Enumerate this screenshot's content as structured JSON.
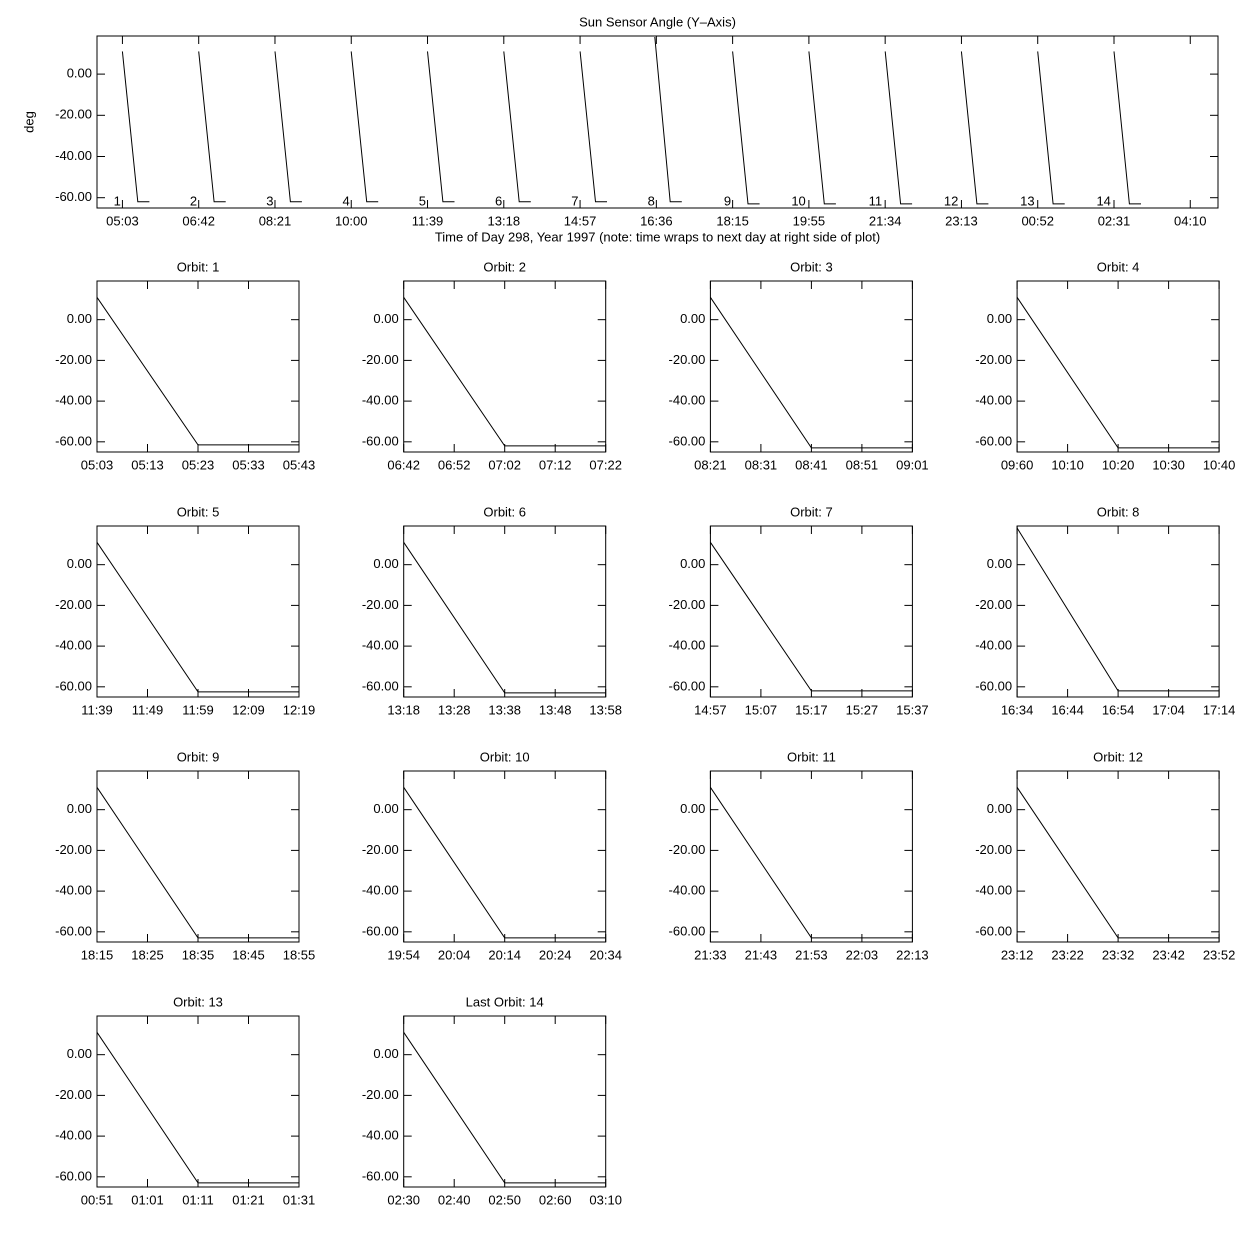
{
  "chart_data": [
    {
      "type": "line",
      "title": "Sun Sensor Angle (Y–Axis)",
      "xlabel": "Time of Day 298, Year 1997 (note: time wraps to next day at right side of plot)",
      "ylabel": "deg",
      "xlim": [
        270,
        1725
      ],
      "ylim": [
        -65,
        18.5
      ],
      "xticks": [
        {
          "value": 303,
          "label": "05:03"
        },
        {
          "value": 402,
          "label": "06:42"
        },
        {
          "value": 501,
          "label": "08:21"
        },
        {
          "value": 600,
          "label": "10:00"
        },
        {
          "value": 699,
          "label": "11:39"
        },
        {
          "value": 798,
          "label": "13:18"
        },
        {
          "value": 897,
          "label": "14:57"
        },
        {
          "value": 996,
          "label": "16:36"
        },
        {
          "value": 1095,
          "label": "18:15"
        },
        {
          "value": 1194,
          "label": "19:55"
        },
        {
          "value": 1293,
          "label": "21:34"
        },
        {
          "value": 1392,
          "label": "23:13"
        },
        {
          "value": 1491,
          "label": "00:52"
        },
        {
          "value": 1590,
          "label": "02:31"
        },
        {
          "value": 1689,
          "label": "04:10"
        }
      ],
      "yticks": [
        {
          "value": 0,
          "label": "0.00"
        },
        {
          "value": -20,
          "label": "-20.00"
        },
        {
          "value": -40,
          "label": "-40.00"
        },
        {
          "value": -60,
          "label": "-60.00"
        }
      ],
      "x": [
        303,
        323,
        338,
        null,
        402,
        422,
        437,
        null,
        501,
        521,
        536,
        null,
        600,
        620,
        635,
        null,
        699,
        719,
        734,
        null,
        798,
        818,
        833,
        null,
        897,
        917,
        932,
        null,
        994,
        1014,
        1029,
        null,
        1095,
        1115,
        1130,
        null,
        1194,
        1214,
        1229,
        null,
        1293,
        1313,
        1328,
        null,
        1392,
        1412,
        1427,
        null,
        1491,
        1511,
        1526,
        null,
        1590,
        1610,
        1625
      ],
      "values": [
        11,
        -62,
        -62,
        null,
        11,
        -62,
        -62,
        null,
        11,
        -62,
        -62,
        null,
        11,
        -62,
        -62,
        null,
        11,
        -62,
        -62,
        null,
        11,
        -62,
        -62,
        null,
        11,
        -62,
        -62,
        null,
        18,
        -62,
        -62,
        null,
        11,
        -63,
        -63,
        null,
        11,
        -63,
        -63,
        null,
        11,
        -63,
        -63,
        null,
        11,
        -63,
        -63,
        null,
        11,
        -63,
        -63,
        null,
        11,
        -63,
        -63
      ],
      "color": "#000000",
      "annotations": [
        {
          "text": "1",
          "x": 301,
          "y": -62
        },
        {
          "text": "2",
          "x": 400,
          "y": -62
        },
        {
          "text": "3",
          "x": 499,
          "y": -62
        },
        {
          "text": "4",
          "x": 598,
          "y": -62
        },
        {
          "text": "5",
          "x": 697,
          "y": -62
        },
        {
          "text": "6",
          "x": 796,
          "y": -62
        },
        {
          "text": "7",
          "x": 895,
          "y": -62
        },
        {
          "text": "8",
          "x": 994,
          "y": -62
        },
        {
          "text": "9",
          "x": 1093,
          "y": -62
        },
        {
          "text": "10",
          "x": 1190,
          "y": -62
        },
        {
          "text": "11",
          "x": 1289,
          "y": -62
        },
        {
          "text": "12",
          "x": 1388,
          "y": -62
        },
        {
          "text": "13",
          "x": 1487,
          "y": -62
        },
        {
          "text": "14",
          "x": 1586,
          "y": -62
        }
      ]
    },
    {
      "type": "line",
      "title": "Orbit: 1",
      "xlim": [
        303,
        343
      ],
      "ylim": [
        -65,
        19
      ],
      "xticks": [
        {
          "value": 303,
          "label": "05:03"
        },
        {
          "value": 313,
          "label": "05:13"
        },
        {
          "value": 323,
          "label": "05:23"
        },
        {
          "value": 333,
          "label": "05:33"
        },
        {
          "value": 343,
          "label": "05:43"
        }
      ],
      "yticks": [
        {
          "value": 0,
          "label": "0.00"
        },
        {
          "value": -20,
          "label": "-20.00"
        },
        {
          "value": -40,
          "label": "-40.00"
        },
        {
          "value": -60,
          "label": "-60.00"
        }
      ],
      "x": [
        303,
        323,
        343
      ],
      "values": [
        11,
        -61.5,
        -61.5
      ],
      "color": "#000000"
    },
    {
      "type": "line",
      "title": "Orbit: 2",
      "xlim": [
        402,
        442
      ],
      "ylim": [
        -65,
        19
      ],
      "xticks": [
        {
          "value": 402,
          "label": "06:42"
        },
        {
          "value": 412,
          "label": "06:52"
        },
        {
          "value": 422,
          "label": "07:02"
        },
        {
          "value": 432,
          "label": "07:12"
        },
        {
          "value": 442,
          "label": "07:22"
        }
      ],
      "yticks": [
        {
          "value": 0,
          "label": "0.00"
        },
        {
          "value": -20,
          "label": "-20.00"
        },
        {
          "value": -40,
          "label": "-40.00"
        },
        {
          "value": -60,
          "label": "-60.00"
        }
      ],
      "x": [
        402,
        422,
        442
      ],
      "values": [
        11,
        -62,
        -62
      ],
      "color": "#000000"
    },
    {
      "type": "line",
      "title": "Orbit: 3",
      "xlim": [
        501,
        541
      ],
      "ylim": [
        -65,
        19
      ],
      "xticks": [
        {
          "value": 501,
          "label": "08:21"
        },
        {
          "value": 511,
          "label": "08:31"
        },
        {
          "value": 521,
          "label": "08:41"
        },
        {
          "value": 531,
          "label": "08:51"
        },
        {
          "value": 541,
          "label": "09:01"
        }
      ],
      "yticks": [
        {
          "value": 0,
          "label": "0.00"
        },
        {
          "value": -20,
          "label": "-20.00"
        },
        {
          "value": -40,
          "label": "-40.00"
        },
        {
          "value": -60,
          "label": "-60.00"
        }
      ],
      "x": [
        501,
        521,
        541
      ],
      "values": [
        11,
        -63,
        -63
      ],
      "color": "#000000"
    },
    {
      "type": "line",
      "title": "Orbit: 4",
      "xlim": [
        600,
        640
      ],
      "ylim": [
        -65,
        19
      ],
      "xticks": [
        {
          "value": 600,
          "label": "09:60"
        },
        {
          "value": 610,
          "label": "10:10"
        },
        {
          "value": 620,
          "label": "10:20"
        },
        {
          "value": 630,
          "label": "10:30"
        },
        {
          "value": 640,
          "label": "10:40"
        }
      ],
      "yticks": [
        {
          "value": 0,
          "label": "0.00"
        },
        {
          "value": -20,
          "label": "-20.00"
        },
        {
          "value": -40,
          "label": "-40.00"
        },
        {
          "value": -60,
          "label": "-60.00"
        }
      ],
      "x": [
        600,
        620,
        640
      ],
      "values": [
        11,
        -63,
        -63
      ],
      "color": "#000000"
    },
    {
      "type": "line",
      "title": "Orbit: 5",
      "xlim": [
        699,
        739
      ],
      "ylim": [
        -65,
        19
      ],
      "xticks": [
        {
          "value": 699,
          "label": "11:39"
        },
        {
          "value": 709,
          "label": "11:49"
        },
        {
          "value": 719,
          "label": "11:59"
        },
        {
          "value": 729,
          "label": "12:09"
        },
        {
          "value": 739,
          "label": "12:19"
        }
      ],
      "yticks": [
        {
          "value": 0,
          "label": "0.00"
        },
        {
          "value": -20,
          "label": "-20.00"
        },
        {
          "value": -40,
          "label": "-40.00"
        },
        {
          "value": -60,
          "label": "-60.00"
        }
      ],
      "x": [
        699,
        719,
        739
      ],
      "values": [
        11,
        -62.5,
        -62.5
      ],
      "color": "#000000"
    },
    {
      "type": "line",
      "title": "Orbit: 6",
      "xlim": [
        798,
        838
      ],
      "ylim": [
        -65,
        19
      ],
      "xticks": [
        {
          "value": 798,
          "label": "13:18"
        },
        {
          "value": 808,
          "label": "13:28"
        },
        {
          "value": 818,
          "label": "13:38"
        },
        {
          "value": 828,
          "label": "13:48"
        },
        {
          "value": 838,
          "label": "13:58"
        }
      ],
      "yticks": [
        {
          "value": 0,
          "label": "0.00"
        },
        {
          "value": -20,
          "label": "-20.00"
        },
        {
          "value": -40,
          "label": "-40.00"
        },
        {
          "value": -60,
          "label": "-60.00"
        }
      ],
      "x": [
        798,
        818,
        838
      ],
      "values": [
        11,
        -63,
        -63
      ],
      "color": "#000000"
    },
    {
      "type": "line",
      "title": "Orbit: 7",
      "xlim": [
        897,
        937
      ],
      "ylim": [
        -65,
        19
      ],
      "xticks": [
        {
          "value": 897,
          "label": "14:57"
        },
        {
          "value": 907,
          "label": "15:07"
        },
        {
          "value": 917,
          "label": "15:17"
        },
        {
          "value": 927,
          "label": "15:27"
        },
        {
          "value": 937,
          "label": "15:37"
        }
      ],
      "yticks": [
        {
          "value": 0,
          "label": "0.00"
        },
        {
          "value": -20,
          "label": "-20.00"
        },
        {
          "value": -40,
          "label": "-40.00"
        },
        {
          "value": -60,
          "label": "-60.00"
        }
      ],
      "x": [
        897,
        917,
        937
      ],
      "values": [
        11,
        -62,
        -62
      ],
      "color": "#000000"
    },
    {
      "type": "line",
      "title": "Orbit: 8",
      "xlim": [
        994,
        1034
      ],
      "ylim": [
        -65,
        19
      ],
      "xticks": [
        {
          "value": 994,
          "label": "16:34"
        },
        {
          "value": 1004,
          "label": "16:44"
        },
        {
          "value": 1014,
          "label": "16:54"
        },
        {
          "value": 1024,
          "label": "17:04"
        },
        {
          "value": 1034,
          "label": "17:14"
        }
      ],
      "yticks": [
        {
          "value": 0,
          "label": "0.00"
        },
        {
          "value": -20,
          "label": "-20.00"
        },
        {
          "value": -40,
          "label": "-40.00"
        },
        {
          "value": -60,
          "label": "-60.00"
        }
      ],
      "x": [
        994,
        1014,
        1034
      ],
      "values": [
        18,
        -62,
        -62
      ],
      "color": "#000000"
    },
    {
      "type": "line",
      "title": "Orbit: 9",
      "xlim": [
        1095,
        1135
      ],
      "ylim": [
        -65,
        19
      ],
      "xticks": [
        {
          "value": 1095,
          "label": "18:15"
        },
        {
          "value": 1105,
          "label": "18:25"
        },
        {
          "value": 1115,
          "label": "18:35"
        },
        {
          "value": 1125,
          "label": "18:45"
        },
        {
          "value": 1135,
          "label": "18:55"
        }
      ],
      "yticks": [
        {
          "value": 0,
          "label": "0.00"
        },
        {
          "value": -20,
          "label": "-20.00"
        },
        {
          "value": -40,
          "label": "-40.00"
        },
        {
          "value": -60,
          "label": "-60.00"
        }
      ],
      "x": [
        1095,
        1115,
        1135
      ],
      "values": [
        11,
        -63,
        -63
      ],
      "color": "#000000"
    },
    {
      "type": "line",
      "title": "Orbit: 10",
      "xlim": [
        1194,
        1234
      ],
      "ylim": [
        -65,
        19
      ],
      "xticks": [
        {
          "value": 1194,
          "label": "19:54"
        },
        {
          "value": 1204,
          "label": "20:04"
        },
        {
          "value": 1214,
          "label": "20:14"
        },
        {
          "value": 1224,
          "label": "20:24"
        },
        {
          "value": 1234,
          "label": "20:34"
        }
      ],
      "yticks": [
        {
          "value": 0,
          "label": "0.00"
        },
        {
          "value": -20,
          "label": "-20.00"
        },
        {
          "value": -40,
          "label": "-40.00"
        },
        {
          "value": -60,
          "label": "-60.00"
        }
      ],
      "x": [
        1194,
        1214,
        1234
      ],
      "values": [
        11,
        -63,
        -63
      ],
      "color": "#000000"
    },
    {
      "type": "line",
      "title": "Orbit: 11",
      "xlim": [
        1293,
        1333
      ],
      "ylim": [
        -65,
        19
      ],
      "xticks": [
        {
          "value": 1293,
          "label": "21:33"
        },
        {
          "value": 1303,
          "label": "21:43"
        },
        {
          "value": 1313,
          "label": "21:53"
        },
        {
          "value": 1323,
          "label": "22:03"
        },
        {
          "value": 1333,
          "label": "22:13"
        }
      ],
      "yticks": [
        {
          "value": 0,
          "label": "0.00"
        },
        {
          "value": -20,
          "label": "-20.00"
        },
        {
          "value": -40,
          "label": "-40.00"
        },
        {
          "value": -60,
          "label": "-60.00"
        }
      ],
      "x": [
        1293,
        1313,
        1333
      ],
      "values": [
        11,
        -63,
        -63
      ],
      "color": "#000000"
    },
    {
      "type": "line",
      "title": "Orbit: 12",
      "xlim": [
        1392,
        1432
      ],
      "ylim": [
        -65,
        19
      ],
      "xticks": [
        {
          "value": 1392,
          "label": "23:12"
        },
        {
          "value": 1402,
          "label": "23:22"
        },
        {
          "value": 1412,
          "label": "23:32"
        },
        {
          "value": 1422,
          "label": "23:42"
        },
        {
          "value": 1432,
          "label": "23:52"
        }
      ],
      "yticks": [
        {
          "value": 0,
          "label": "0.00"
        },
        {
          "value": -20,
          "label": "-20.00"
        },
        {
          "value": -40,
          "label": "-40.00"
        },
        {
          "value": -60,
          "label": "-60.00"
        }
      ],
      "x": [
        1392,
        1412,
        1432
      ],
      "values": [
        11,
        -63,
        -63
      ],
      "color": "#000000"
    },
    {
      "type": "line",
      "title": "Orbit: 13",
      "xlim": [
        51,
        91
      ],
      "ylim": [
        -65,
        19
      ],
      "xticks": [
        {
          "value": 51,
          "label": "00:51"
        },
        {
          "value": 61,
          "label": "01:01"
        },
        {
          "value": 71,
          "label": "01:11"
        },
        {
          "value": 81,
          "label": "01:21"
        },
        {
          "value": 91,
          "label": "01:31"
        }
      ],
      "yticks": [
        {
          "value": 0,
          "label": "0.00"
        },
        {
          "value": -20,
          "label": "-20.00"
        },
        {
          "value": -40,
          "label": "-40.00"
        },
        {
          "value": -60,
          "label": "-60.00"
        }
      ],
      "x": [
        51,
        71,
        91
      ],
      "values": [
        11,
        -63,
        -63
      ],
      "color": "#000000"
    },
    {
      "type": "line",
      "title": "Last Orbit: 14",
      "xlim": [
        150,
        190
      ],
      "ylim": [
        -65,
        19
      ],
      "xticks": [
        {
          "value": 150,
          "label": "02:30"
        },
        {
          "value": 160,
          "label": "02:40"
        },
        {
          "value": 170,
          "label": "02:50"
        },
        {
          "value": 180,
          "label": "02:60"
        },
        {
          "value": 190,
          "label": "03:10"
        }
      ],
      "yticks": [
        {
          "value": 0,
          "label": "0.00"
        },
        {
          "value": -20,
          "label": "-20.00"
        },
        {
          "value": -40,
          "label": "-40.00"
        },
        {
          "value": -60,
          "label": "-60.00"
        }
      ],
      "x": [
        150,
        170,
        190
      ],
      "values": [
        11,
        -63,
        -63
      ],
      "color": "#000000"
    }
  ]
}
